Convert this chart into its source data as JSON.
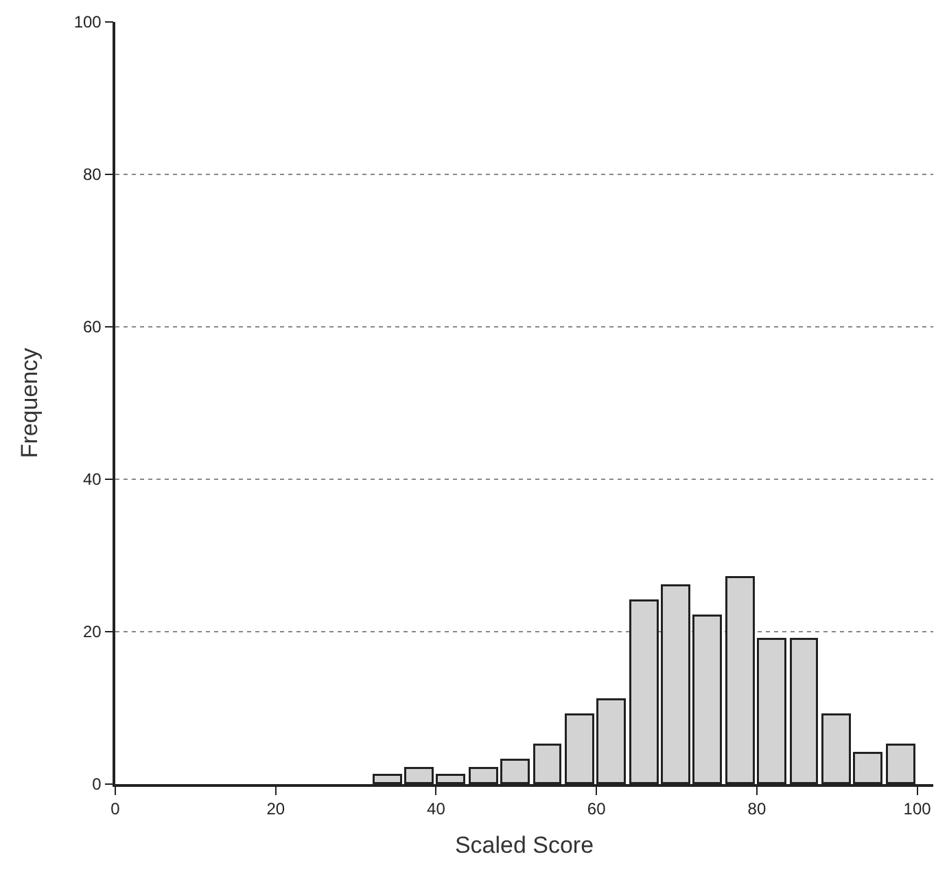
{
  "chart_data": {
    "type": "histogram",
    "xlabel": "Scaled Score",
    "ylabel": "Frequency",
    "bins": [
      32,
      36,
      40,
      44,
      48,
      52,
      56,
      60,
      64,
      68,
      72,
      76,
      80,
      84,
      88,
      92,
      96,
      100
    ],
    "values": [
      1,
      2,
      1,
      2,
      3,
      5,
      9,
      11,
      24,
      26,
      22,
      27,
      19,
      19,
      9,
      4,
      5
    ],
    "color": "#d3d3d3",
    "xlim": [
      0,
      102
    ],
    "xticks": [
      0,
      20,
      40,
      60,
      80,
      100
    ],
    "ylim": [
      0,
      100
    ],
    "yticks": [
      0,
      20,
      40,
      60,
      80,
      100
    ],
    "grid": "y",
    "legend": false
  }
}
